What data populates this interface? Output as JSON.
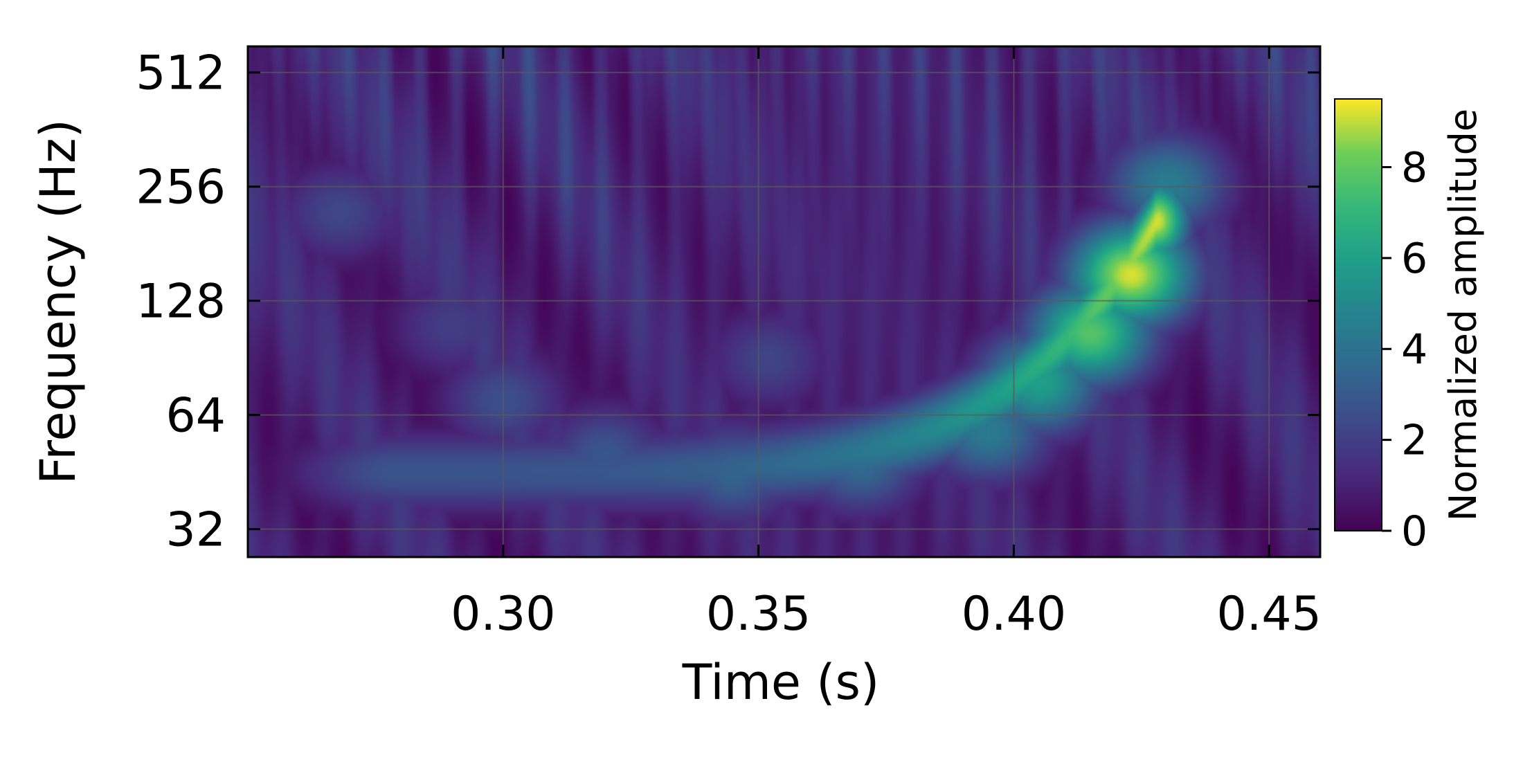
{
  "chart_data": {
    "type": "heatmap",
    "title": "",
    "xlabel": "Time (s)",
    "ylabel": "Frequency (Hz)",
    "xlim": [
      0.25,
      0.46
    ],
    "ylim": [
      27,
      600
    ],
    "y_scale": "log2",
    "x_ticks": [
      {
        "value": 0.3,
        "label": "0.30"
      },
      {
        "value": 0.35,
        "label": "0.35"
      },
      {
        "value": 0.4,
        "label": "0.40"
      },
      {
        "value": 0.45,
        "label": "0.45"
      }
    ],
    "y_ticks": [
      {
        "value": 32,
        "label": "32"
      },
      {
        "value": 64,
        "label": "64"
      },
      {
        "value": 128,
        "label": "128"
      },
      {
        "value": 256,
        "label": "256"
      },
      {
        "value": 512,
        "label": "512"
      }
    ],
    "grid": true,
    "colormap": "viridis",
    "colorbar": {
      "label": "Normalized amplitude",
      "range": [
        0,
        9.5
      ],
      "ticks": [
        {
          "value": 0,
          "label": "0"
        },
        {
          "value": 2,
          "label": "2"
        },
        {
          "value": 4,
          "label": "4"
        },
        {
          "value": 6,
          "label": "6"
        },
        {
          "value": 8,
          "label": "8"
        }
      ]
    },
    "features": [
      {
        "t": 0.423,
        "f": 150,
        "amplitude": 9.2
      },
      {
        "t": 0.415,
        "f": 105,
        "amplitude": 7.8
      },
      {
        "t": 0.405,
        "f": 78,
        "amplitude": 6.0
      },
      {
        "t": 0.395,
        "f": 58,
        "amplitude": 4.4
      },
      {
        "t": 0.37,
        "f": 48,
        "amplitude": 3.7
      },
      {
        "t": 0.345,
        "f": 45,
        "amplitude": 3.4
      },
      {
        "t": 0.32,
        "f": 50,
        "amplitude": 2.9
      },
      {
        "t": 0.3,
        "f": 70,
        "amplitude": 2.6
      },
      {
        "t": 0.43,
        "f": 260,
        "amplitude": 4.5
      },
      {
        "t": 0.268,
        "f": 220,
        "amplitude": 2.3
      },
      {
        "t": 0.352,
        "f": 90,
        "amplitude": 2.2
      },
      {
        "t": 0.29,
        "f": 110,
        "amplitude": 2.0
      }
    ],
    "background_amplitude": 1.0
  }
}
